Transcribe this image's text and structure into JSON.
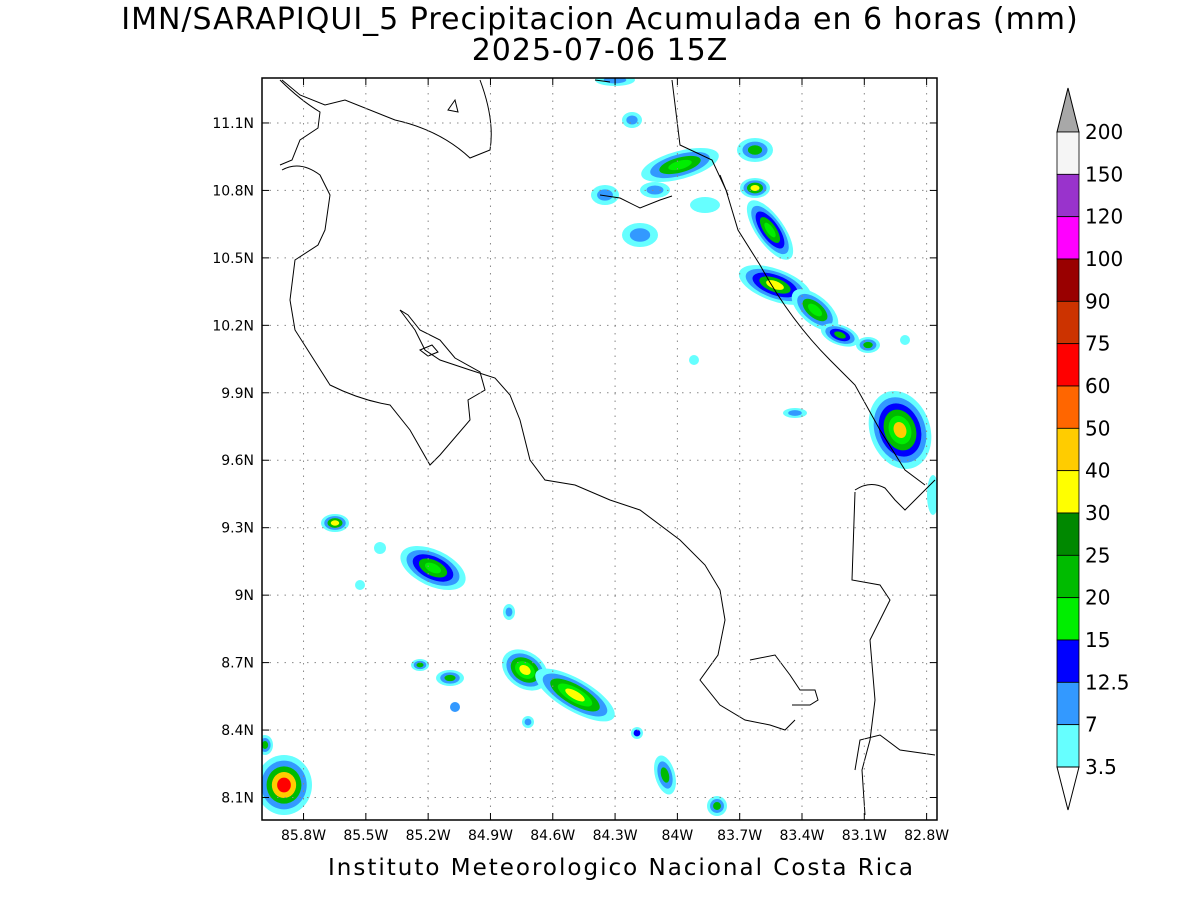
{
  "title": {
    "line1": "IMN/SARAPIQUI_5 Precipitacion Acumulada en 6 horas (mm)",
    "line2": "2025-07-06 15Z"
  },
  "footer": "Instituto Meteorologico Nacional Costa Rica",
  "map": {
    "lon_ticks": [
      "85.8W",
      "85.5W",
      "85.2W",
      "84.9W",
      "84.6W",
      "84.3W",
      "84W",
      "83.7W",
      "83.4W",
      "83.1W",
      "82.8W"
    ],
    "lat_ticks": [
      "11.1N",
      "10.8N",
      "10.5N",
      "10.2N",
      "9.9N",
      "9.6N",
      "9.3N",
      "9N",
      "8.7N",
      "8.4N",
      "8.1N"
    ],
    "lon_range": [
      -86.0,
      -82.75
    ],
    "lat_range": [
      8.0,
      11.3
    ],
    "grid": true
  },
  "legend": {
    "labels": [
      "200",
      "150",
      "120",
      "100",
      "90",
      "75",
      "60",
      "50",
      "40",
      "30",
      "25",
      "20",
      "15",
      "12.5",
      "7",
      "3.5"
    ],
    "colors": [
      "#f5f5f5",
      "#9933cc",
      "#ff00ff",
      "#990000",
      "#cc3300",
      "#ff0000",
      "#ff6600",
      "#ffcc00",
      "#ffff00",
      "#008800",
      "#00bb00",
      "#00ee00",
      "#0000ff",
      "#3399ff",
      "#66ffff"
    ],
    "top_arrow_color": "#a8a8a8",
    "bottom_arrow_color": "#ffffff"
  }
}
